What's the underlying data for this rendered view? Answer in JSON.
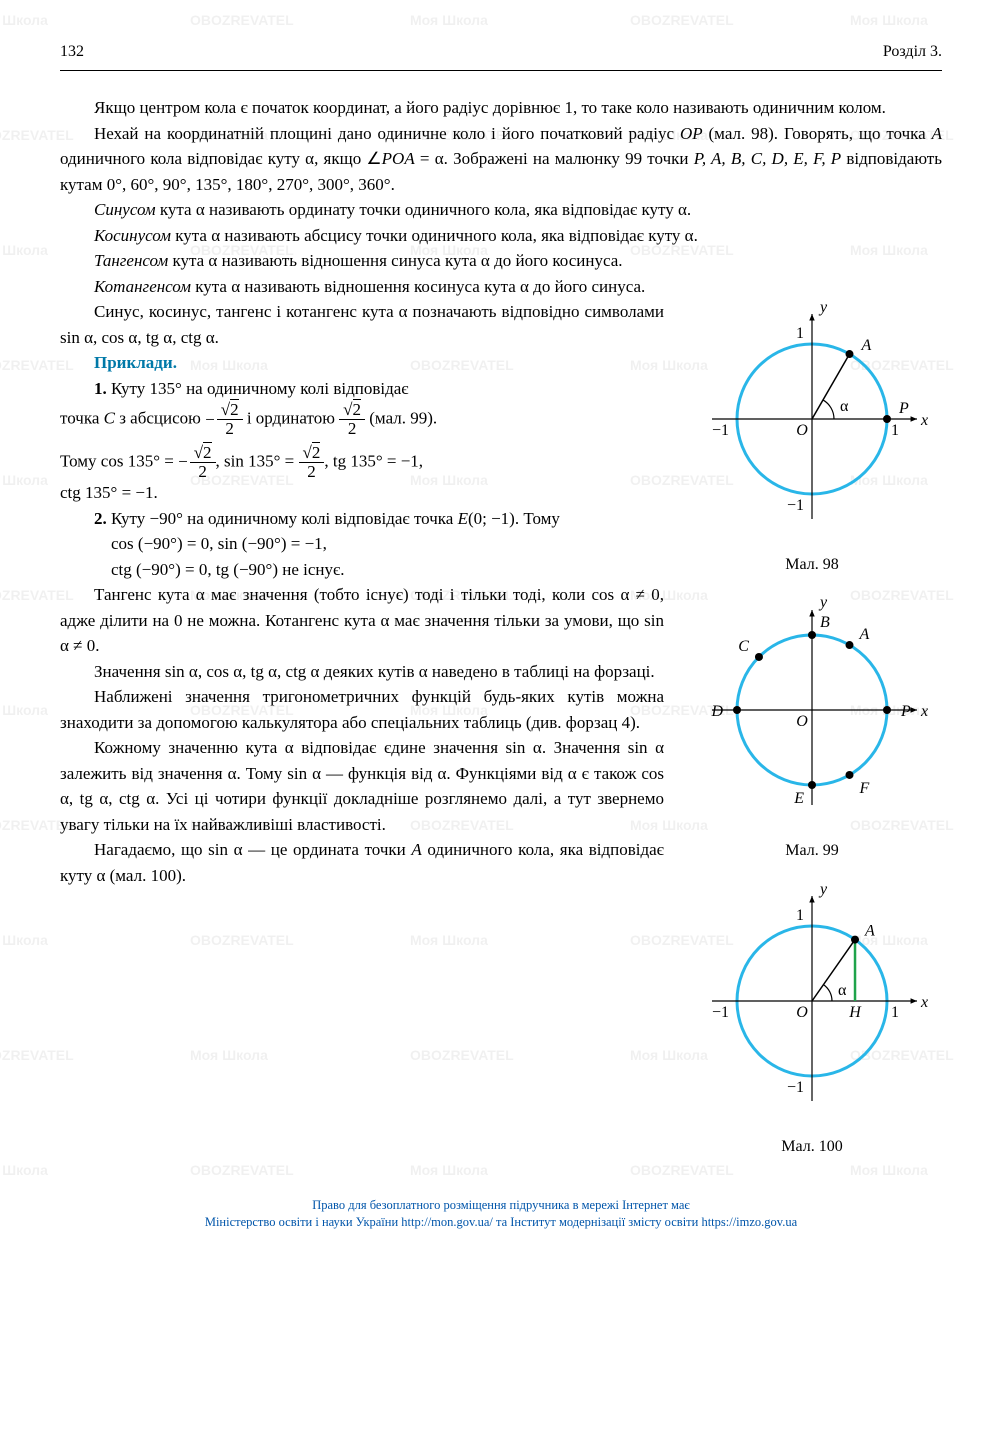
{
  "page_number": "132",
  "section_label": "Розділ 3.",
  "watermark_texts": [
    "Моя Школа",
    "OBOZREVATEL"
  ],
  "body": {
    "p1": "Якщо центром кола є початок координат, а його радіус дорівнює 1, то таке коло називають одиничним колом.",
    "p2_a": "Нехай на координатній площині дано одиничне коло і його початковий радіус ",
    "p2_op": "OP",
    "p2_b": " (мал. 98). Говорять, що точка ",
    "p2_a_letter": "A",
    "p2_c": " одиничного кола відповідає куту α, якщо ∠",
    "p2_poa": "POA",
    "p2_d": " = α. Зображені на малюнку 99 точки ",
    "p2_points": "P, A, B, C, D, E, F, P",
    "p2_e": " відповідають кутам 0°, 60°, 90°, 135°, 180°, 270°, 300°, 360°.",
    "p3_label": "Синусом",
    "p3": " кута α називають ординату точки одиничного кола, яка відповідає куту α.",
    "p4_label": "Косинусом",
    "p4": " кута α називають абсцису точки одиничного кола, яка відповідає куту α.",
    "p5_label": "Тангенсом",
    "p5": " кута α називають відношення синуса кута α до його косинуса.",
    "p6_label": "Котангенсом",
    "p6": " кута α називають відношення косинуса кута α до його синуса.",
    "p7": "Синус, косинус, тангенс і котангенс кута α позначають відповідно символами sin α, cos α, tg α, ctg α.",
    "examples_label": "Приклади.",
    "ex1_a": "1.",
    "ex1_b": " Куту 135° на одиничному колі відповідає",
    "ex1_c": "точка ",
    "ex1_c_letter": "C",
    "ex1_d": " з абсцисою ",
    "ex1_e": " і ординатою ",
    "ex1_f": " (мал. 99).",
    "ex1_g": "Тому cos 135° = ",
    "ex1_h": ", sin 135° = ",
    "ex1_i": ", tg 135° = −1,",
    "ex1_j": "ctg 135° = −1.",
    "ex2_a": "2.",
    "ex2_b": " Куту −90° на одиничному колі відповідає точка ",
    "ex2_e_letter": "E",
    "ex2_c": "(0; −1). Тому",
    "ex2_d": "cos (−90°) = 0, sin (−90°) = −1,",
    "ex2_e": "ctg (−90°) = 0, tg (−90°) не існує.",
    "p8": "Тангенс кута α має значення (тобто існує) тоді і тільки тоді, коли cos α ≠ 0, адже ділити на 0 не можна. Котангенс кута α має значення тільки за умови, що sin α ≠ 0.",
    "p9": "Значення sin α, cos α, tg α, ctg α деяких кутів α наведено в таблиці на форзаці.",
    "p10": "Наближені значення тригонометричних функцій будь-яких кутів можна знаходити за допомогою калькулятора або спеціальних таблиць (див. форзац 4).",
    "p11": "Кожному значенню кута α відповідає єдине значення sin α. Значення sin α залежить від значення α. Тому sin α — функція від α. Функціями від α є також cos α, tg α, ctg α. Усі ці чотири функції докладніше розглянемо далі, а тут звернемо увагу тільки на їх найважливіші властивості.",
    "p12_a": "Нагадаємо, що sin α — це ордината точки ",
    "p12_a_letter": "A",
    "p12_b": " одиничного кола, яка відповідає куту α (мал. 100)."
  },
  "figures": {
    "fig98": {
      "caption": "Мал. 98",
      "circle_color": "#29b6e8",
      "stroke_width": 3,
      "axis_color": "#000000",
      "point_fill": "#000000",
      "labels": {
        "y": "y",
        "x": "x",
        "O": "O",
        "P": "P",
        "A": "A",
        "neg1x": "−1",
        "pos1x": "1",
        "neg1y": "−1",
        "pos1y": "1",
        "alpha": "α"
      },
      "angle_deg": 60
    },
    "fig99": {
      "caption": "Мал. 99",
      "circle_color": "#29b6e8",
      "stroke_width": 3,
      "axis_color": "#000000",
      "labels": {
        "y": "y",
        "x": "x",
        "O": "O",
        "P": "P",
        "A": "A",
        "B": "B",
        "C": "C",
        "D": "D",
        "E": "E",
        "F": "F"
      },
      "points": [
        {
          "name": "P",
          "deg": 0
        },
        {
          "name": "A",
          "deg": 60
        },
        {
          "name": "B",
          "deg": 90
        },
        {
          "name": "C",
          "deg": 135
        },
        {
          "name": "D",
          "deg": 180
        },
        {
          "name": "E",
          "deg": 270
        },
        {
          "name": "F",
          "deg": 300
        }
      ]
    },
    "fig100": {
      "caption": "Мал. 100",
      "circle_color": "#29b6e8",
      "accent_color": "#1fa34a",
      "stroke_width": 3,
      "axis_color": "#000000",
      "labels": {
        "y": "y",
        "x": "x",
        "O": "O",
        "A": "A",
        "H": "H",
        "neg1x": "−1",
        "pos1x": "1",
        "neg1y": "−1",
        "pos1y": "1",
        "alpha": "α"
      },
      "angle_deg": 55
    }
  },
  "fractions": {
    "neg_sqrt2_over_2": {
      "sign": "−",
      "num": "√2",
      "den": "2"
    },
    "sqrt2_over_2": {
      "sign": "",
      "num": "√2",
      "den": "2"
    }
  },
  "footer": {
    "line1": "Право для безоплатного розміщення підручника в мережі Інтернет має",
    "line2_a": "Міністерство освіти і науки України ",
    "line2_link1": "http://mon.gov.ua/",
    "line2_b": " та Інститут модернізації змісту освіти ",
    "line2_link2": "https://imzo.gov.ua"
  }
}
